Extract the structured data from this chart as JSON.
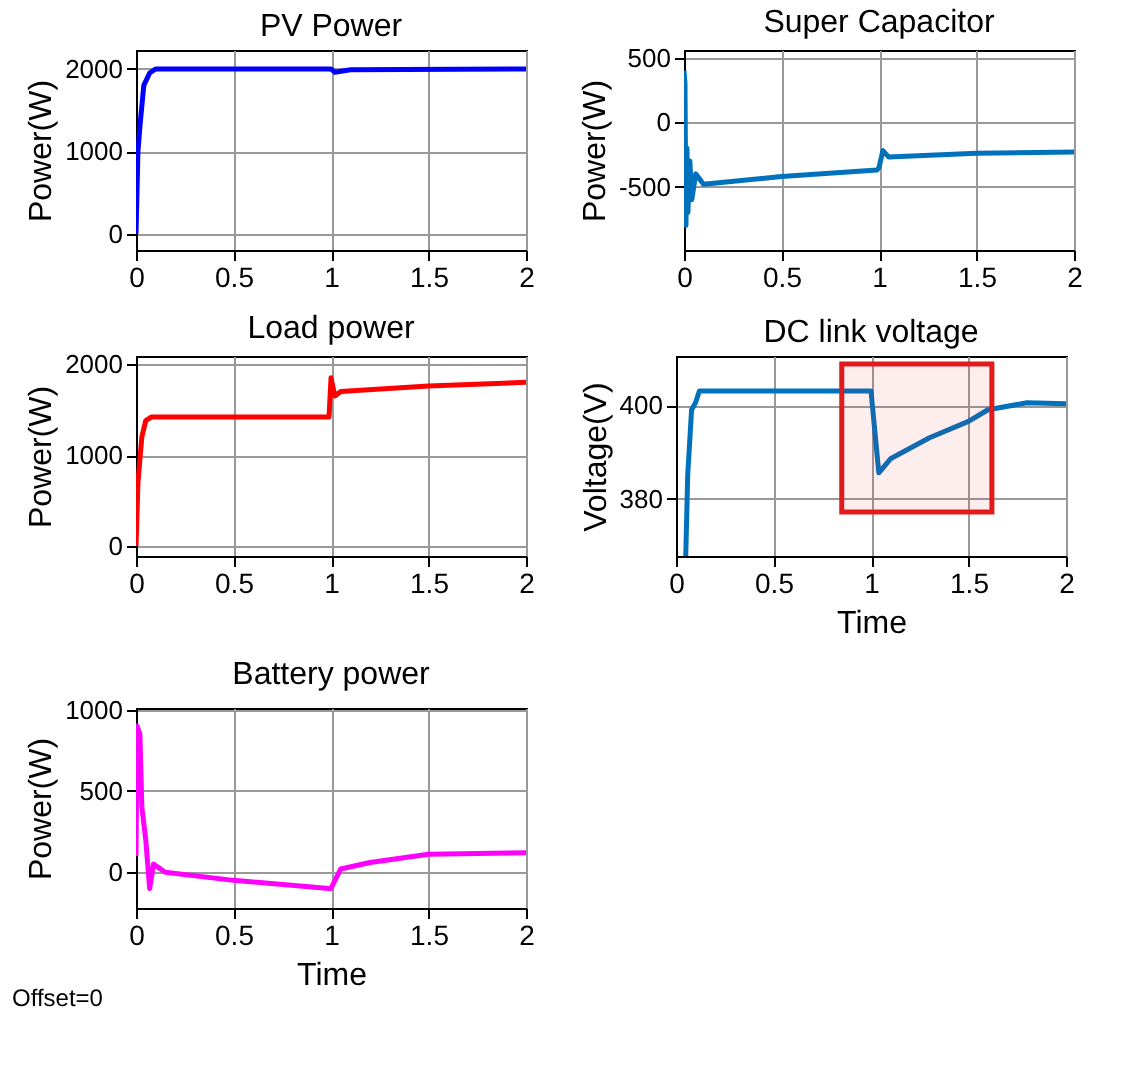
{
  "chart_data": [
    {
      "type": "line",
      "title": "PV Power",
      "ylabel": "Power(W)",
      "grid": true,
      "xlim": [
        0,
        2
      ],
      "xticks": [
        0,
        0.5,
        1,
        1.5,
        2
      ],
      "ylim": [
        -200,
        2230
      ],
      "yticks": [
        0,
        1000,
        2000
      ],
      "series": [
        {
          "color": "#0000ff",
          "x": [
            0,
            0.01,
            0.02,
            0.04,
            0.07,
            0.1,
            1.0,
            1.02,
            1.1,
            2
          ],
          "values": [
            0,
            1000,
            1300,
            1800,
            1950,
            2000,
            2000,
            1960,
            1990,
            2000
          ]
        }
      ]
    },
    {
      "type": "line",
      "title": "Super Capacitor",
      "ylabel": "Power(W)",
      "grid": true,
      "xlim": [
        0,
        2
      ],
      "xticks": [
        0,
        0.5,
        1,
        1.5,
        2
      ],
      "ylim": [
        -990,
        560
      ],
      "yticks": [
        -500,
        0,
        500
      ],
      "series": [
        {
          "color": "#0072bd",
          "x": [
            0,
            0.005,
            0.01,
            0.015,
            0.02,
            0.03,
            0.04,
            0.06,
            0.1,
            0.5,
            0.99,
            1.0,
            1.02,
            1.05,
            1.5,
            2
          ],
          "values": [
            400,
            300,
            -800,
            -200,
            -700,
            -300,
            -600,
            -400,
            -480,
            -420,
            -370,
            -350,
            -220,
            -270,
            -240,
            -230
          ]
        }
      ]
    },
    {
      "type": "line",
      "title": "Load power",
      "ylabel": "Power(W)",
      "grid": true,
      "xlim": [
        0,
        2
      ],
      "xticks": [
        0,
        0.5,
        1,
        1.5,
        2
      ],
      "ylim": [
        -110,
        2090
      ],
      "yticks": [
        0,
        1000,
        2000
      ],
      "series": [
        {
          "color": "#ff0000",
          "x": [
            0,
            0.01,
            0.03,
            0.05,
            0.08,
            0.99,
            1.0,
            1.02,
            1.05,
            1.5,
            2
          ],
          "values": [
            0,
            700,
            1200,
            1380,
            1420,
            1420,
            1850,
            1650,
            1700,
            1760,
            1800
          ]
        }
      ]
    },
    {
      "type": "line",
      "title": "DC link voltage",
      "xlabel": "Time",
      "ylabel": "Voltage(V)",
      "grid": true,
      "xlim": [
        0,
        2
      ],
      "xticks": [
        0,
        0.5,
        1,
        1.5,
        2
      ],
      "ylim": [
        367.7,
        410.5
      ],
      "yticks": [
        380,
        400
      ],
      "bands": [
        {
          "axis": "x",
          "from": 0.85,
          "to": 1.62,
          "color": "#e31a1c"
        }
      ],
      "series": [
        {
          "color": "#0072bd",
          "x": [
            0.05,
            0.06,
            0.08,
            0.1,
            0.12,
            1.0,
            1.04,
            1.1,
            1.3,
            1.5,
            1.6,
            1.8,
            2
          ],
          "values": [
            367.7,
            385,
            399,
            400.5,
            403,
            403,
            385.5,
            388.5,
            393,
            396.5,
            399,
            400.5,
            400.3
          ]
        }
      ]
    },
    {
      "type": "line",
      "title": "Battery power",
      "xlabel": "Time",
      "ylabel": "Power(W)",
      "grid": true,
      "xlim": [
        0,
        2
      ],
      "xticks": [
        0,
        0.5,
        1,
        1.5,
        2
      ],
      "ylim": [
        -220,
        1010
      ],
      "yticks": [
        0,
        500,
        1000
      ],
      "annotations": [
        "Offset=0"
      ],
      "series": [
        {
          "color": "#ff00ff",
          "x": [
            0,
            0.005,
            0.02,
            0.03,
            0.05,
            0.07,
            0.09,
            0.15,
            0.5,
            0.99,
            1.0,
            1.05,
            1.2,
            1.5,
            2
          ],
          "values": [
            100,
            900,
            850,
            400,
            200,
            -100,
            50,
            0,
            -50,
            -100,
            -100,
            20,
            60,
            110,
            120
          ]
        }
      ]
    }
  ]
}
